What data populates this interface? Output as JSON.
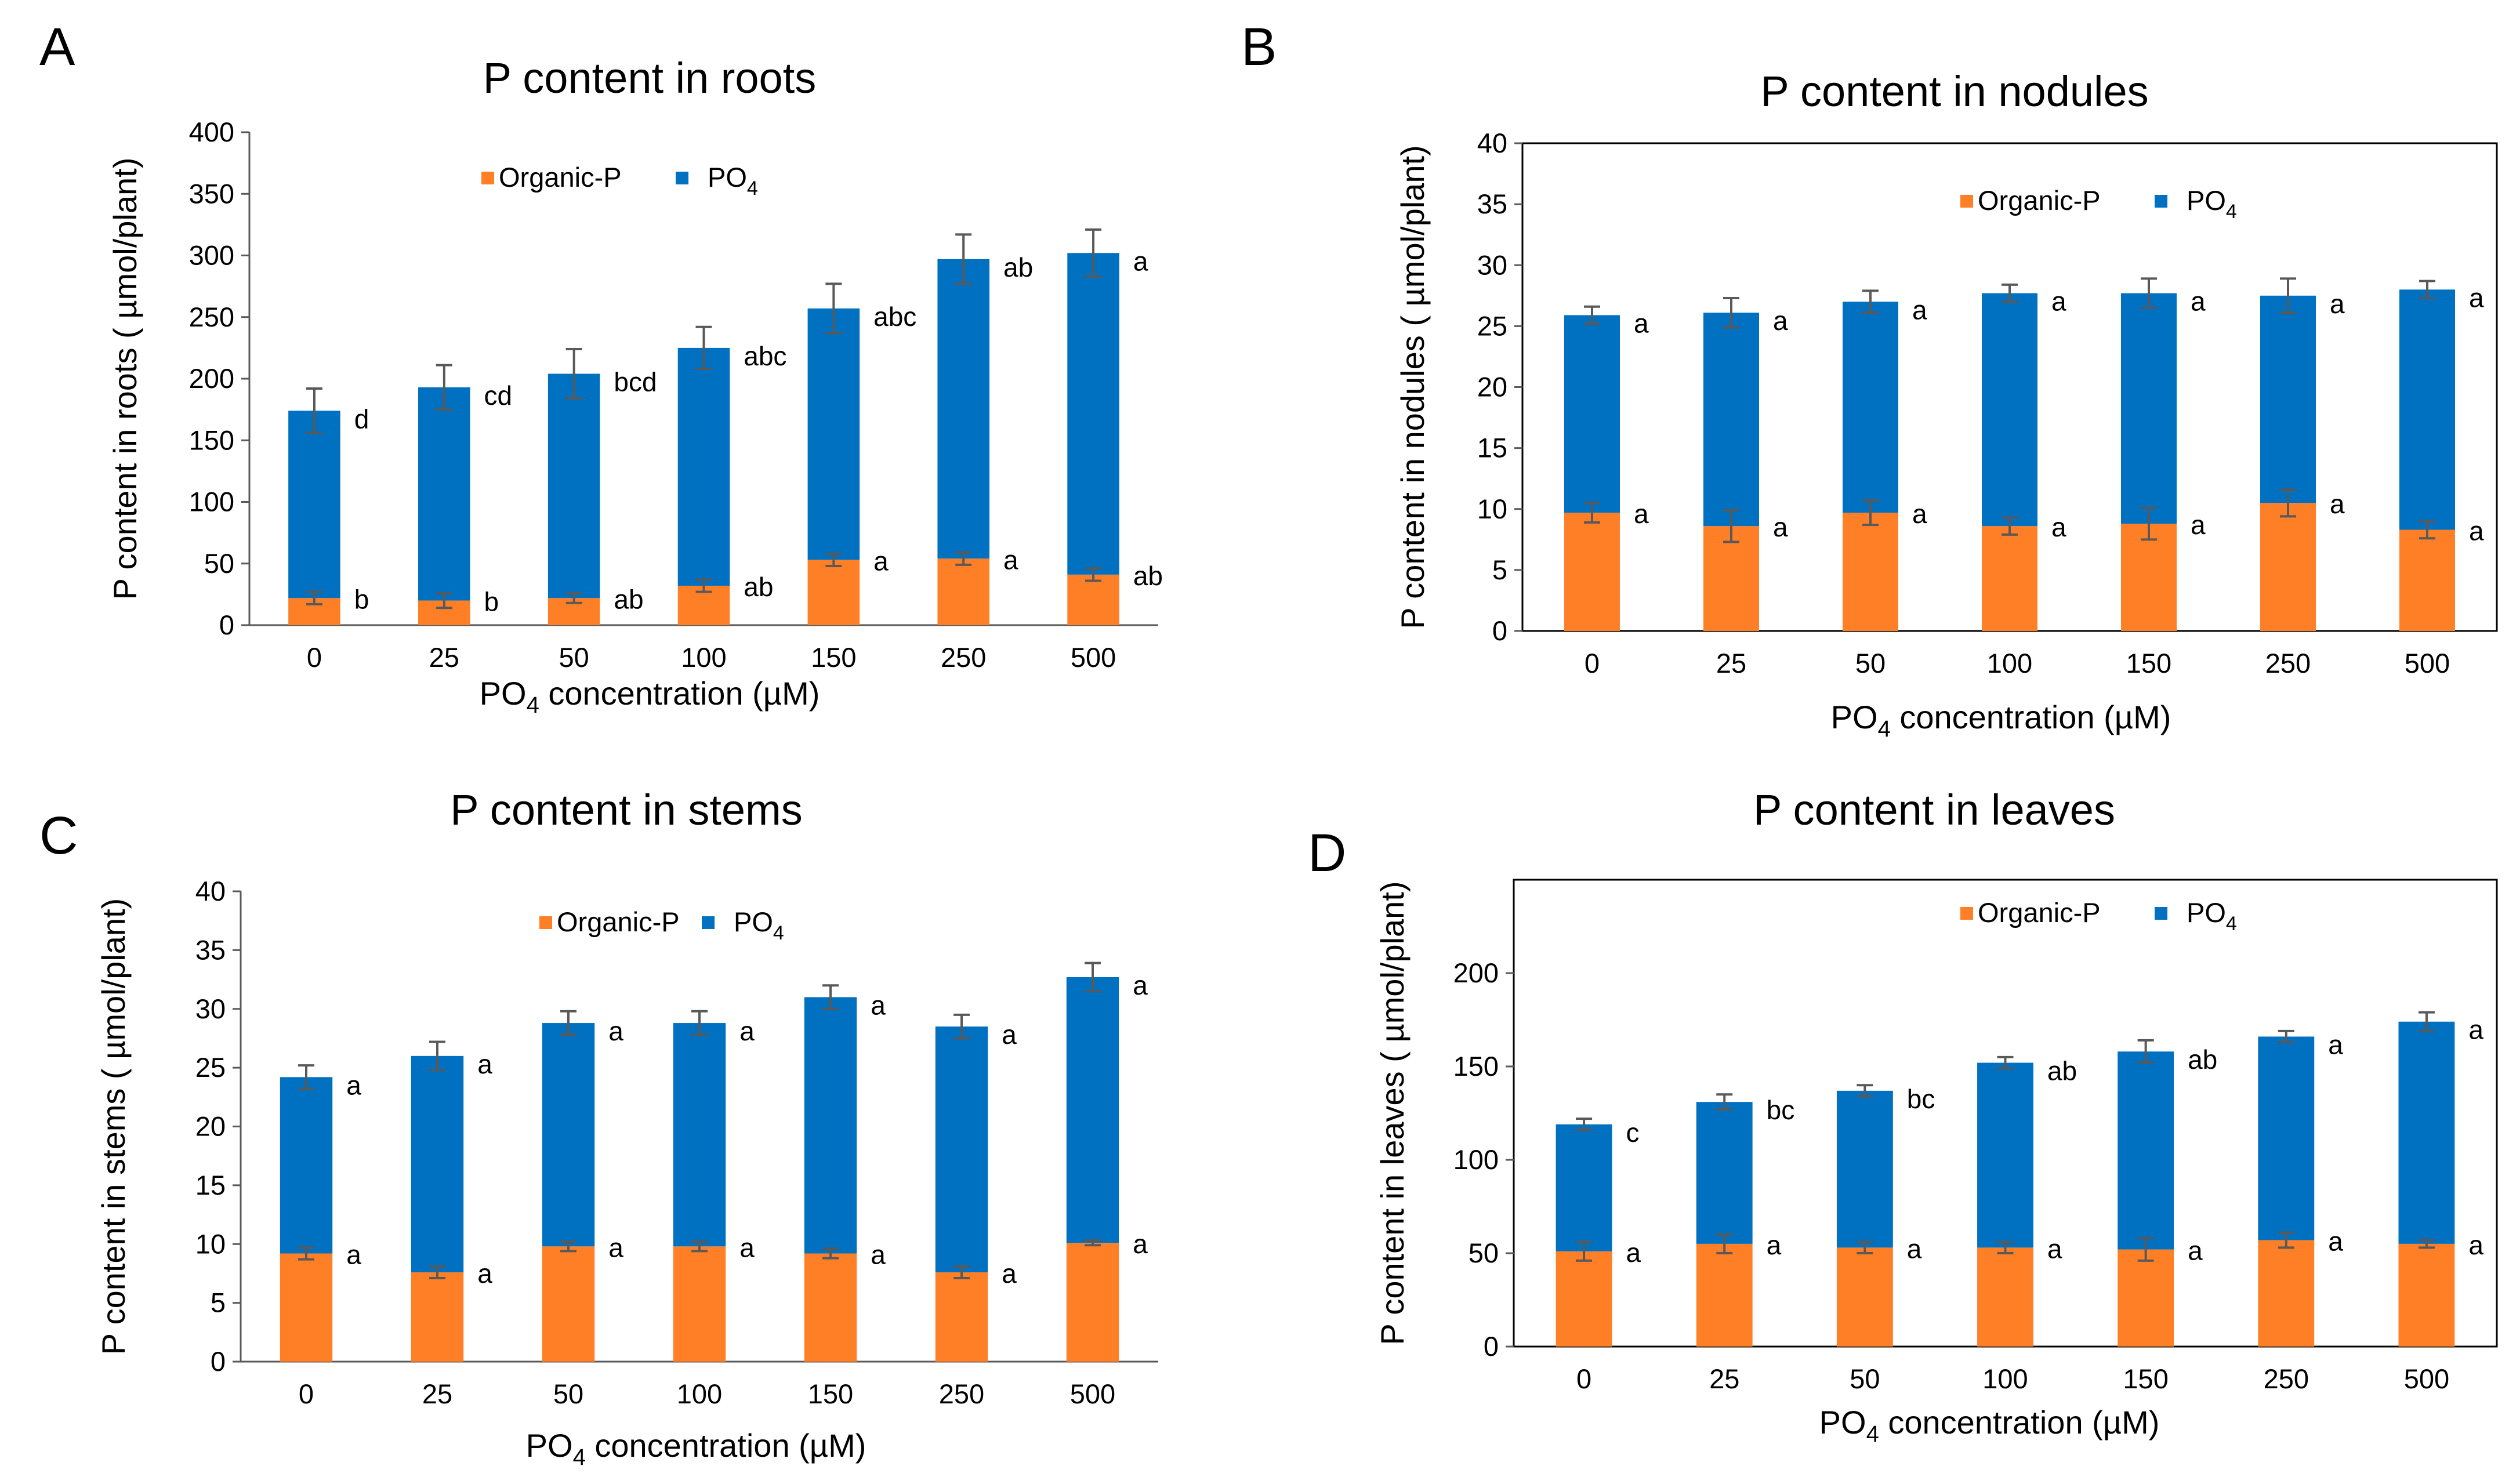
{
  "colors": {
    "organic": "#FF7F27",
    "po4": "#0070C0",
    "axis": "#595959",
    "errorbar": "#595959",
    "frame": "#000000"
  },
  "chart_data": [
    {
      "type": "bar",
      "stacked": true,
      "panel": "A",
      "title": "P content in roots",
      "xlabel_main": "PO",
      "xlabel_sub": "4",
      "xlabel_rest": " concentration (µM)",
      "ylabel": "P content in roots ( µmol/plant)",
      "ylim": [
        0,
        400
      ],
      "yticks": [
        "0",
        "50",
        "100",
        "150",
        "200",
        "250",
        "300",
        "350",
        "400"
      ],
      "yticks_values": [
        0,
        50,
        100,
        150,
        200,
        250,
        300,
        350,
        400
      ],
      "frame": false,
      "categories": [
        "0",
        "25",
        "50",
        "100",
        "150",
        "250",
        "500"
      ],
      "legend": {
        "organic": "Organic-P",
        "po4_main": "PO",
        "po4_sub": "4"
      },
      "series": [
        {
          "name": "Organic-P",
          "values": [
            22,
            20,
            22,
            32,
            53,
            54,
            41
          ],
          "errors": [
            5,
            6,
            4,
            5,
            5,
            5,
            5
          ],
          "letters": [
            "b",
            "b",
            "ab",
            "ab",
            "a",
            "a",
            "ab"
          ]
        },
        {
          "name": "PO4",
          "values": [
            152,
            173,
            182,
            193,
            204,
            243,
            261
          ],
          "errors": [
            18,
            18,
            20,
            17,
            20,
            20,
            19
          ],
          "letters": [
            "d",
            "cd",
            "bcd",
            "abc",
            "abc",
            "ab",
            "a"
          ]
        }
      ]
    },
    {
      "type": "bar",
      "stacked": true,
      "panel": "B",
      "title": "P content in nodules",
      "xlabel_main": "PO",
      "xlabel_sub": "4",
      "xlabel_rest": " concentration (µM)",
      "ylabel": "P content in nodules ( µmol/plant)",
      "ylim": [
        0,
        40
      ],
      "yticks": [
        "0",
        "5",
        "10",
        "15",
        "20",
        "25",
        "30",
        "35",
        "40"
      ],
      "yticks_values": [
        0,
        5,
        10,
        15,
        20,
        25,
        30,
        35,
        40
      ],
      "frame": true,
      "categories": [
        "0",
        "25",
        "50",
        "100",
        "150",
        "250",
        "500"
      ],
      "legend": {
        "organic": "Organic-P",
        "po4_main": "PO",
        "po4_sub": "4"
      },
      "series": [
        {
          "name": "Organic-P",
          "values": [
            9.7,
            8.6,
            9.7,
            8.6,
            8.8,
            10.5,
            8.3
          ],
          "errors": [
            0.8,
            1.3,
            1.0,
            0.7,
            1.3,
            1.1,
            0.7
          ],
          "letters": [
            "a",
            "a",
            "a",
            "a",
            "a",
            "a",
            "a"
          ]
        },
        {
          "name": "PO4",
          "values": [
            16.2,
            17.5,
            17.3,
            19.1,
            18.9,
            17.0,
            19.7
          ],
          "errors": [
            0.7,
            1.2,
            0.9,
            0.7,
            1.2,
            1.4,
            0.7
          ],
          "letters": [
            "a",
            "a",
            "a",
            "a",
            "a",
            "a",
            "a"
          ]
        }
      ]
    },
    {
      "type": "bar",
      "stacked": true,
      "panel": "C",
      "title": "P content in stems",
      "xlabel_main": "PO",
      "xlabel_sub": "4",
      "xlabel_rest": " concentration (µM)",
      "ylabel": "P content in stems ( µmol/plant)",
      "ylim": [
        0,
        40
      ],
      "yticks": [
        "0",
        "5",
        "10",
        "15",
        "20",
        "25",
        "30",
        "35",
        "40"
      ],
      "yticks_values": [
        0,
        5,
        10,
        15,
        20,
        25,
        30,
        35,
        40
      ],
      "frame": false,
      "categories": [
        "0",
        "25",
        "50",
        "100",
        "150",
        "250",
        "500"
      ],
      "legend": {
        "organic": "Organic-P",
        "po4_main": "PO",
        "po4_sub": "4"
      },
      "series": [
        {
          "name": "Organic-P",
          "values": [
            9.2,
            7.6,
            9.8,
            9.8,
            9.2,
            7.6,
            10.1
          ],
          "errors": [
            0.5,
            0.5,
            0.4,
            0.4,
            0.4,
            0.5,
            0.2
          ],
          "letters": [
            "a",
            "a",
            "a",
            "a",
            "a",
            "a",
            "a"
          ]
        },
        {
          "name": "PO4",
          "values": [
            15.0,
            18.4,
            19.0,
            19.0,
            21.8,
            20.9,
            22.6
          ],
          "errors": [
            1.0,
            1.2,
            1.0,
            1.0,
            1.0,
            1.0,
            1.2
          ],
          "letters": [
            "a",
            "a",
            "a",
            "a",
            "a",
            "a",
            "a"
          ]
        }
      ]
    },
    {
      "type": "bar",
      "stacked": true,
      "panel": "D",
      "title": "P content in leaves",
      "xlabel_main": "PO",
      "xlabel_sub": "4",
      "xlabel_rest": " concentration (µM)",
      "ylabel": "P content in leaves ( µmol/plant)",
      "ylim": [
        0,
        250
      ],
      "yticks": [
        "0",
        "50",
        "100",
        "150",
        "200"
      ],
      "yticks_values": [
        0,
        50,
        100,
        150,
        200
      ],
      "frame": true,
      "categories": [
        "0",
        "25",
        "50",
        "100",
        "150",
        "250",
        "500"
      ],
      "legend": {
        "organic": "Organic-P",
        "po4_main": "PO",
        "po4_sub": "4"
      },
      "series": [
        {
          "name": "Organic-P",
          "values": [
            51,
            55,
            53,
            53,
            52,
            57,
            55
          ],
          "errors": [
            5,
            5,
            3,
            3,
            6,
            4,
            2
          ],
          "letters": [
            "a",
            "a",
            "a",
            "a",
            "a",
            "a",
            "a"
          ]
        },
        {
          "name": "PO4",
          "values": [
            68,
            76,
            84,
            99,
            106,
            109,
            119
          ],
          "errors": [
            3,
            4,
            3,
            3,
            6,
            3,
            5
          ],
          "letters": [
            "c",
            "bc",
            "bc",
            "ab",
            "ab",
            "a",
            "a"
          ]
        }
      ]
    }
  ]
}
